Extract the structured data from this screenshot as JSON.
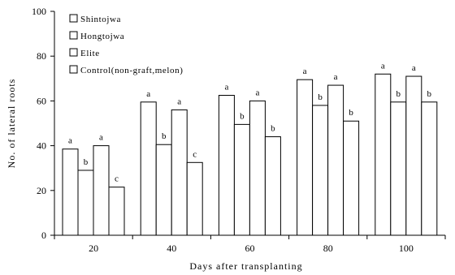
{
  "chart_data": {
    "type": "bar",
    "xlabel": "Days after transplanting",
    "ylabel": "No. of lateral roots",
    "ylim": [
      0,
      100
    ],
    "yticks": [
      0,
      20,
      40,
      60,
      80,
      100
    ],
    "grid": false,
    "legend_position": "top-left",
    "categories": [
      "20",
      "40",
      "60",
      "80",
      "100"
    ],
    "series": [
      {
        "name": "Shintojwa",
        "values": [
          38.5,
          59.5,
          62.5,
          69.5,
          72
        ],
        "letters": [
          "a",
          "a",
          "a",
          "a",
          "a"
        ]
      },
      {
        "name": "Hongtojwa",
        "values": [
          29,
          40.5,
          49.5,
          58,
          59.5
        ],
        "letters": [
          "b",
          "b",
          "b",
          "b",
          "b"
        ]
      },
      {
        "name": "Elite",
        "values": [
          40,
          56,
          60,
          67,
          71
        ],
        "letters": [
          "a",
          "a",
          "a",
          "a",
          "a"
        ]
      },
      {
        "name": "Control(non-graft,melon)",
        "values": [
          21.5,
          32.5,
          44,
          51,
          59.5
        ],
        "letters": [
          "c",
          "c",
          "b",
          "b",
          "b"
        ]
      }
    ]
  }
}
